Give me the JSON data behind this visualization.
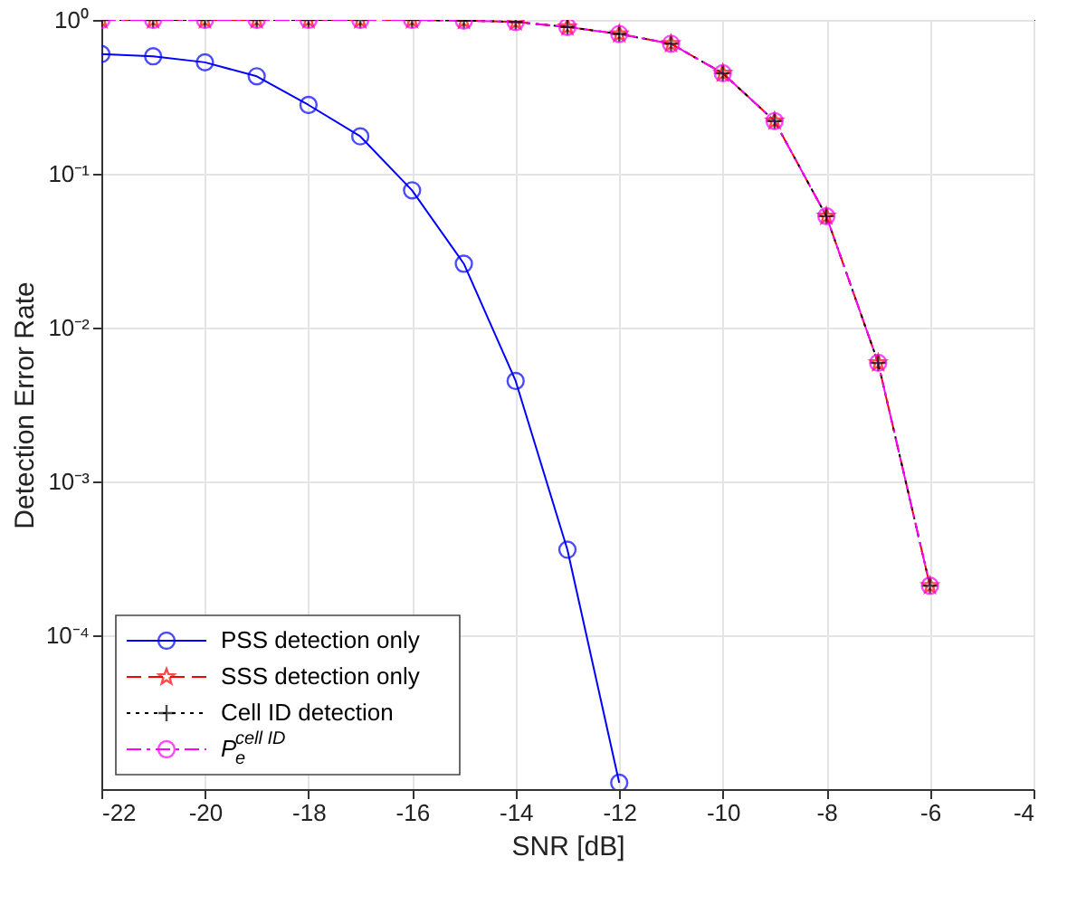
{
  "chart_data": {
    "type": "line",
    "xlabel": "SNR [dB]",
    "ylabel": "Detection Error Rate",
    "x": [
      -22,
      -21,
      -20,
      -19,
      -18,
      -17,
      -16,
      -15,
      -14,
      -13,
      -12,
      -11,
      -10,
      -9,
      -8,
      -7,
      -6
    ],
    "series": [
      {
        "name": "PSS detection only",
        "color": "#0000ff",
        "line_style": "solid",
        "marker": "circle",
        "values": [
          0.6,
          0.58,
          0.53,
          0.43,
          0.28,
          0.175,
          0.078,
          0.026,
          0.0045,
          0.00036,
          1.1e-05,
          null,
          null,
          null,
          null,
          null,
          null
        ]
      },
      {
        "name": "SSS detection only",
        "color": "#ff0000",
        "line_style": "dashed",
        "marker": "star",
        "values": [
          1,
          1,
          1,
          1,
          1,
          1,
          1,
          0.99,
          0.97,
          0.9,
          0.81,
          0.7,
          0.45,
          0.22,
          0.053,
          0.0059,
          0.00021
        ]
      },
      {
        "name": "Cell ID detection",
        "color": "#000000",
        "line_style": "dotted",
        "marker": "cross",
        "values": [
          1,
          1,
          1,
          1,
          1,
          1,
          1,
          0.99,
          0.97,
          0.9,
          0.81,
          0.7,
          0.45,
          0.22,
          0.053,
          0.0059,
          0.00021
        ]
      },
      {
        "name": "P$^{cell ID}$$_{e}$",
        "color": "#ff00ff",
        "line_style": "dashdot",
        "marker": "circle",
        "values": [
          1,
          1,
          1,
          1,
          1,
          1,
          1,
          0.99,
          0.97,
          0.9,
          0.81,
          0.7,
          0.45,
          0.22,
          0.053,
          0.0059,
          0.00021
        ]
      }
    ],
    "xlim": [
      -22,
      -4
    ],
    "xticks": [
      -22,
      -20,
      -18,
      -16,
      -14,
      -12,
      -10,
      -8,
      -6,
      -4
    ],
    "ylim": [
      1e-05,
      1
    ],
    "yticks": [
      {
        "value": 0.0001,
        "label": "10⁻⁴"
      },
      {
        "value": 0.001,
        "label": "10⁻³"
      },
      {
        "value": 0.01,
        "label": "10⁻²"
      },
      {
        "value": 0.1,
        "label": "10⁻¹"
      },
      {
        "value": 1,
        "label": "10⁰"
      }
    ],
    "log": "y",
    "grid": true,
    "legend": "bottom left"
  }
}
